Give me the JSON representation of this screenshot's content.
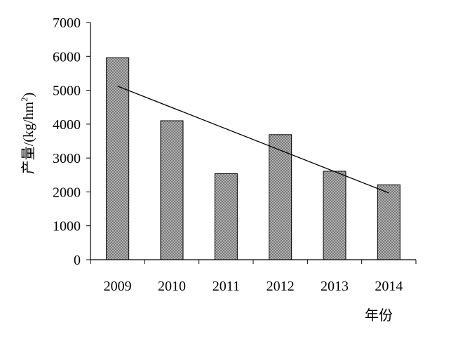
{
  "chart_data": {
    "type": "bar",
    "categories": [
      "2009",
      "2010",
      "2011",
      "2012",
      "2013",
      "2014"
    ],
    "series": [
      {
        "values": [
          5960,
          4100,
          2540,
          3690,
          2610,
          2210
        ]
      }
    ],
    "trendline": {
      "type": "linear",
      "start": 5120,
      "end": 1970
    },
    "ylabel_prefix": "产量/(kg/hm",
    "ylabel_sup": "2",
    "ylabel_suffix": ")",
    "xlabel": "年份",
    "ylim": [
      0,
      7000
    ],
    "yticks": [
      "0",
      "1000",
      "2000",
      "3000",
      "4000",
      "5000",
      "6000",
      "7000"
    ],
    "grid": false,
    "legend": "none",
    "bar_color": "#7a7a7a",
    "bar_pattern_color": "#d8d8d8"
  }
}
